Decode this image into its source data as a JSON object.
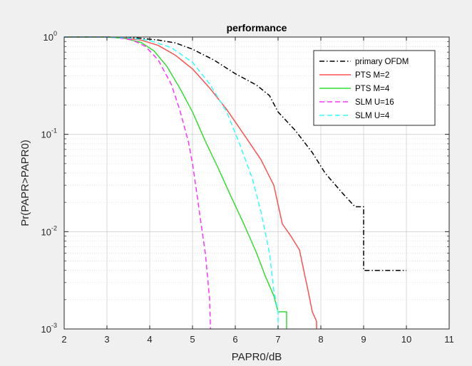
{
  "chart_data": {
    "type": "line",
    "title": "performance",
    "xlabel": "PAPR0/dB",
    "ylabel": "Pr(PAPR>PAPR0)",
    "xlim": [
      2,
      11
    ],
    "ylim": [
      0.001,
      1
    ],
    "yscale": "log",
    "grid": true,
    "legend_position": "top-right",
    "xticks": [
      "2",
      "3",
      "4",
      "5",
      "6",
      "7",
      "8",
      "9",
      "10",
      "11"
    ],
    "yticks": [
      {
        "base": "10",
        "exp": "0"
      },
      {
        "base": "10",
        "exp": "-1"
      },
      {
        "base": "10",
        "exp": "-2"
      },
      {
        "base": "10",
        "exp": "-3"
      }
    ],
    "series": [
      {
        "name": "primary OFDM",
        "color": "#000000",
        "dash": "dashdot",
        "x": [
          2.0,
          3.0,
          3.5,
          3.8,
          4.2,
          4.6,
          5.0,
          5.5,
          6.0,
          6.5,
          6.8,
          7.0,
          7.4,
          7.8,
          8.1,
          8.5,
          8.8,
          9.0,
          9.0,
          10.0
        ],
        "y": [
          1.0,
          1.0,
          0.99,
          0.97,
          0.93,
          0.87,
          0.75,
          0.58,
          0.42,
          0.32,
          0.25,
          0.17,
          0.11,
          0.065,
          0.04,
          0.025,
          0.018,
          0.018,
          0.004,
          0.004
        ]
      },
      {
        "name": "PTS M=2",
        "color": "#ff5050",
        "dash": "solid",
        "x": [
          2.0,
          3.0,
          3.4,
          3.8,
          4.2,
          4.6,
          5.0,
          5.4,
          5.8,
          6.2,
          6.6,
          6.9,
          7.1,
          7.3,
          7.5,
          7.6,
          7.7,
          7.8,
          7.9,
          7.9
        ],
        "y": [
          1.0,
          1.0,
          0.98,
          0.93,
          0.82,
          0.65,
          0.47,
          0.3,
          0.18,
          0.1,
          0.055,
          0.03,
          0.012,
          0.009,
          0.0065,
          0.004,
          0.0025,
          0.0015,
          0.0012,
          0.001
        ]
      },
      {
        "name": "PTS M=4",
        "color": "#33dd33",
        "dash": "solid",
        "x": [
          2.0,
          3.0,
          3.4,
          3.8,
          4.1,
          4.4,
          4.7,
          5.0,
          5.3,
          5.6,
          5.9,
          6.2,
          6.5,
          6.7,
          6.9,
          7.0,
          7.2,
          7.2
        ],
        "y": [
          1.0,
          1.0,
          0.97,
          0.88,
          0.72,
          0.5,
          0.3,
          0.17,
          0.085,
          0.045,
          0.023,
          0.012,
          0.006,
          0.0035,
          0.0022,
          0.0015,
          0.0015,
          0.001
        ]
      },
      {
        "name": "SLM U=16",
        "color": "#ff33ff",
        "dash": "dashed",
        "x": [
          2.0,
          3.0,
          3.3,
          3.6,
          3.9,
          4.2,
          4.5,
          4.7,
          4.9,
          5.0,
          5.1,
          5.2,
          5.3,
          5.35,
          5.4,
          5.42
        ],
        "y": [
          1.0,
          1.0,
          0.98,
          0.93,
          0.8,
          0.58,
          0.33,
          0.18,
          0.085,
          0.05,
          0.025,
          0.012,
          0.006,
          0.0035,
          0.002,
          0.001
        ]
      },
      {
        "name": "SLM U=4",
        "color": "#33ffff",
        "dash": "dashed",
        "x": [
          2.0,
          3.0,
          3.5,
          4.0,
          4.5,
          5.0,
          5.4,
          5.8,
          6.1,
          6.4,
          6.6,
          6.8,
          6.9,
          7.0,
          7.0
        ],
        "y": [
          1.0,
          1.0,
          0.98,
          0.92,
          0.78,
          0.55,
          0.33,
          0.17,
          0.08,
          0.035,
          0.016,
          0.006,
          0.0025,
          0.0015,
          0.001
        ]
      }
    ]
  }
}
